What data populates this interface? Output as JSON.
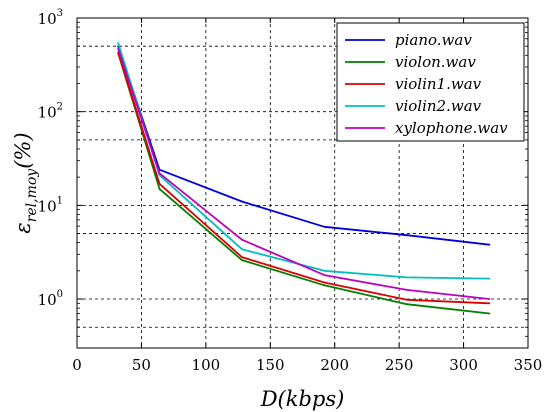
{
  "chart_data": {
    "type": "line",
    "y_scale": "log",
    "grid": true,
    "legend_position": "top-right",
    "xlabel": "D(kbps)",
    "ylabel": "εrel,moy(%)",
    "xlim": [
      0,
      350
    ],
    "ylim": [
      0.3,
      1000
    ],
    "x_ticks": [
      0,
      50,
      100,
      150,
      200,
      250,
      300,
      350
    ],
    "x_tick_labels": [
      "0",
      "50",
      "100",
      "150",
      "200",
      "250",
      "300",
      "350"
    ],
    "y_ticks": [
      1,
      10,
      100,
      1000
    ],
    "y_tick_labels": [
      "10",
      "10",
      "10",
      "10"
    ],
    "y_tick_exponents": [
      "0",
      "1",
      "2",
      "3"
    ],
    "x": [
      32,
      64,
      128,
      192,
      256,
      320
    ],
    "series": [
      {
        "name": "piano.wav",
        "color": "#0000dd",
        "values": [
          500,
          24,
          11,
          5.9,
          4.8,
          3.8
        ]
      },
      {
        "name": "violon.wav",
        "color": "#007f00",
        "values": [
          420,
          15,
          2.6,
          1.4,
          0.88,
          0.7
        ]
      },
      {
        "name": "violin1.wav",
        "color": "#dd0000",
        "values": [
          430,
          17,
          2.8,
          1.5,
          0.98,
          0.9
        ]
      },
      {
        "name": "violin2.wav",
        "color": "#00bfbf",
        "values": [
          540,
          21,
          3.4,
          2.0,
          1.7,
          1.65
        ]
      },
      {
        "name": "xylophone.wav",
        "color": "#bf00bf",
        "values": [
          470,
          22,
          4.3,
          1.8,
          1.25,
          1.0
        ]
      }
    ]
  }
}
